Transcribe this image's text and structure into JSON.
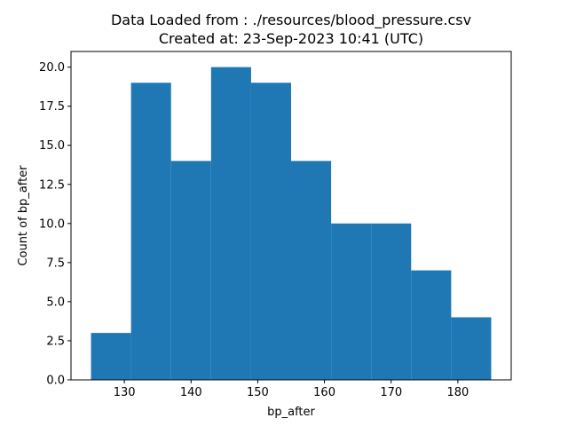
{
  "chart_data": {
    "type": "bar",
    "title_lines": [
      "Data Loaded from : ./resources/blood_pressure.csv",
      "Created at: 23-Sep-2023 10:41 (UTC)"
    ],
    "xlabel": "bp_after",
    "ylabel": "Count of bp_after",
    "bin_edges": [
      125,
      131,
      137,
      143,
      149,
      155,
      161,
      167,
      173,
      179,
      185
    ],
    "values": [
      3,
      19,
      14,
      20,
      19,
      14,
      10,
      10,
      7,
      4
    ],
    "xlim": [
      122,
      188
    ],
    "ylim": [
      0,
      21
    ],
    "xticks": [
      130,
      140,
      150,
      160,
      170,
      180
    ],
    "xtick_labels": [
      "130",
      "140",
      "150",
      "160",
      "170",
      "180"
    ],
    "yticks": [
      0,
      2.5,
      5,
      7.5,
      10,
      12.5,
      15,
      17.5,
      20
    ],
    "ytick_labels": [
      "0.0",
      "2.5",
      "5.0",
      "7.5",
      "10.0",
      "12.5",
      "15.0",
      "17.5",
      "20.0"
    ],
    "bar_color": "#1f77b4",
    "grid": false,
    "legend": false
  }
}
